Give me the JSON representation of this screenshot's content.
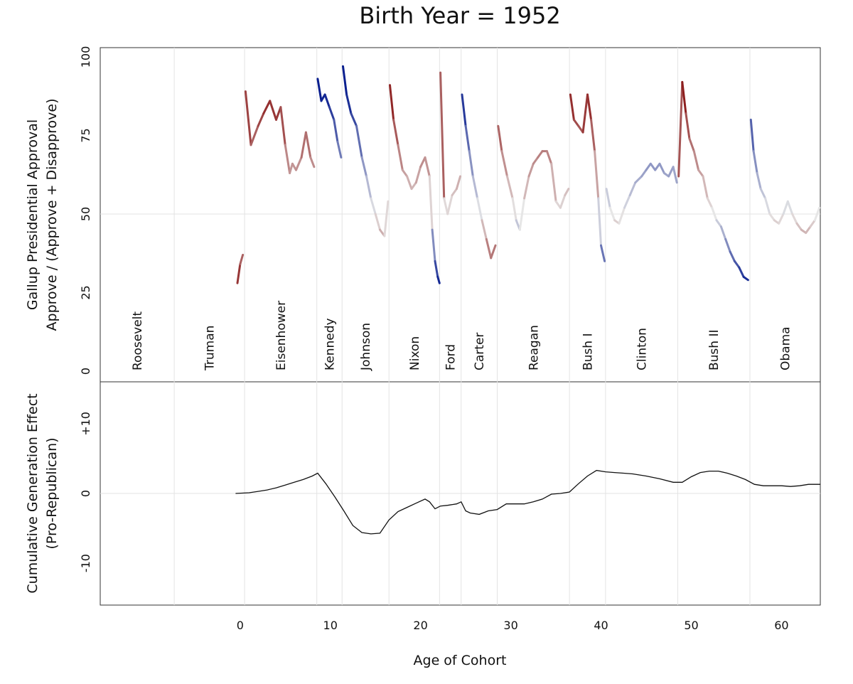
{
  "chart_data": [
    {
      "type": "line",
      "title": "Birth Year = 1952",
      "xlabel": "Age of Cohort",
      "ylabel_line1": "Gallup Presidential Approval",
      "ylabel_line2": "Approve / (Approve + Disapprove)",
      "xlim": [
        -15.5,
        64.3
      ],
      "ylim": [
        0,
        100
      ],
      "xticks": [
        0,
        10,
        20,
        30,
        40,
        50,
        60
      ],
      "yticks": [
        0,
        25,
        50,
        75,
        100
      ],
      "grid": true,
      "color_scale": {
        "republican": "#8b1a1a",
        "neutral": "#e6e6e6",
        "democrat": "#0a1f8f"
      },
      "presidents": [
        {
          "name": "Roosevelt",
          "start": -15.5,
          "end": -7.3,
          "party": "D"
        },
        {
          "name": "Truman",
          "start": -7.3,
          "end": 0.5,
          "party": "D"
        },
        {
          "name": "Eisenhower",
          "start": 0.5,
          "end": 8.5,
          "party": "R"
        },
        {
          "name": "Kennedy",
          "start": 8.5,
          "end": 11.3,
          "party": "D"
        },
        {
          "name": "Johnson",
          "start": 11.3,
          "end": 16.5,
          "party": "D"
        },
        {
          "name": "Nixon",
          "start": 16.5,
          "end": 22.1,
          "party": "R"
        },
        {
          "name": "Ford",
          "start": 22.1,
          "end": 24.5,
          "party": "R"
        },
        {
          "name": "Carter",
          "start": 24.5,
          "end": 28.5,
          "party": "D"
        },
        {
          "name": "Reagan",
          "start": 28.5,
          "end": 36.5,
          "party": "R"
        },
        {
          "name": "Bush I",
          "start": 36.5,
          "end": 40.5,
          "party": "R"
        },
        {
          "name": "Clinton",
          "start": 40.5,
          "end": 48.5,
          "party": "D"
        },
        {
          "name": "Bush II",
          "start": 48.5,
          "end": 56.5,
          "party": "R"
        },
        {
          "name": "Obama",
          "start": 56.5,
          "end": 64.3,
          "party": "D"
        }
      ],
      "series": [
        {
          "name": "Truman approval",
          "party": "D",
          "x": [
            -0.3,
            0.0,
            0.3
          ],
          "y": [
            28,
            34,
            37
          ]
        },
        {
          "name": "Eisenhower approval",
          "party": "R",
          "x": [
            0.6,
            1.2,
            2.0,
            2.6,
            3.3,
            4.0,
            4.5,
            5.0,
            5.5,
            5.8,
            6.2,
            6.8,
            7.3,
            7.8,
            8.2
          ],
          "y": [
            89,
            72,
            78,
            82,
            86,
            80,
            84,
            72,
            63,
            66,
            64,
            68,
            76,
            68,
            65
          ]
        },
        {
          "name": "Kennedy approval",
          "party": "D",
          "x": [
            8.6,
            9.0,
            9.4,
            9.9,
            10.4,
            10.8,
            11.2
          ],
          "y": [
            93,
            86,
            88,
            84,
            80,
            73,
            68
          ]
        },
        {
          "name": "Johnson approval",
          "party": "D",
          "x": [
            11.4,
            11.8,
            12.3,
            12.9,
            13.5,
            14.0,
            14.5,
            15.0,
            15.5,
            16.0,
            16.4
          ],
          "y": [
            97,
            88,
            82,
            78,
            68,
            62,
            55,
            50,
            45,
            43,
            54
          ]
        },
        {
          "name": "Nixon approval",
          "party": "R",
          "x": [
            16.6,
            17.0,
            17.5,
            18.0,
            18.5,
            19.0,
            19.5,
            20.0,
            20.5,
            21.0,
            21.3,
            21.6,
            21.9,
            22.1
          ],
          "y": [
            91,
            80,
            72,
            64,
            62,
            58,
            60,
            65,
            68,
            62,
            45,
            35,
            30,
            28
          ]
        },
        {
          "name": "Ford approval",
          "party": "R",
          "x": [
            22.2,
            22.6,
            23.0,
            23.5,
            24.0,
            24.4
          ],
          "y": [
            95,
            55,
            50,
            56,
            58,
            62
          ]
        },
        {
          "name": "Carter approval",
          "party": "D",
          "x": [
            24.6,
            25.0,
            25.4,
            25.8,
            26.3,
            26.8,
            27.3,
            27.8,
            28.3
          ],
          "y": [
            88,
            78,
            70,
            62,
            55,
            48,
            42,
            36,
            40
          ]
        },
        {
          "name": "Reagan approval",
          "party": "R",
          "x": [
            28.6,
            29.0,
            29.6,
            30.2,
            30.6,
            31.0,
            31.5,
            32.0,
            32.5,
            33.0,
            33.5,
            34.0,
            34.5,
            35.0,
            35.5,
            36.0,
            36.4
          ],
          "y": [
            78,
            70,
            62,
            55,
            48,
            45,
            55,
            62,
            66,
            68,
            70,
            70,
            66,
            54,
            52,
            56,
            58
          ]
        },
        {
          "name": "Bush I approval",
          "party": "R",
          "x": [
            36.6,
            37.0,
            37.5,
            38.0,
            38.5,
            38.9,
            39.3,
            39.7,
            40.0,
            40.4
          ],
          "y": [
            88,
            80,
            78,
            76,
            88,
            80,
            70,
            55,
            40,
            35
          ]
        },
        {
          "name": "Clinton approval",
          "party": "D",
          "x": [
            40.6,
            41.0,
            41.5,
            42.0,
            42.6,
            43.2,
            43.8,
            44.5,
            45.0,
            45.5,
            46.0,
            46.5,
            47.0,
            47.5,
            48.0,
            48.4
          ],
          "y": [
            58,
            52,
            48,
            47,
            52,
            56,
            60,
            62,
            64,
            66,
            64,
            66,
            63,
            62,
            65,
            60
          ]
        },
        {
          "name": "Bush II approval",
          "party": "R",
          "x": [
            48.6,
            49.0,
            49.4,
            49.8,
            50.3,
            50.8,
            51.3,
            51.8,
            52.3,
            52.8,
            53.3,
            53.8,
            54.3,
            54.8,
            55.3,
            55.8,
            56.3
          ],
          "y": [
            62,
            92,
            82,
            74,
            70,
            64,
            62,
            55,
            52,
            48,
            46,
            42,
            38,
            35,
            33,
            30,
            29
          ]
        },
        {
          "name": "Obama approval",
          "party": "D",
          "x": [
            56.6,
            56.9,
            57.3,
            57.7,
            58.2,
            58.7,
            59.2,
            59.7,
            60.2,
            60.7,
            61.2,
            61.7,
            62.2,
            62.7,
            63.2,
            63.7,
            64.2
          ],
          "y": [
            80,
            70,
            63,
            58,
            55,
            50,
            48,
            47,
            50,
            54,
            50,
            47,
            45,
            44,
            46,
            48,
            52
          ]
        }
      ]
    },
    {
      "type": "line",
      "xlabel": "Age of Cohort",
      "ylabel_line1": "Cumulative Generation Effect",
      "ylabel_line2": "(Pro-Republican)",
      "xlim": [
        -15.5,
        64.3
      ],
      "ylim": [
        -16,
        16
      ],
      "yticks": [
        -10,
        0,
        10
      ],
      "ytick_labels": [
        "-10",
        "0",
        "+10"
      ],
      "series": [
        {
          "name": "Cumulative generation effect",
          "x": [
            -0.5,
            1,
            2,
            3,
            4,
            5,
            6,
            7,
            8,
            8.6,
            9.5,
            10.5,
            11.5,
            12.5,
            13.5,
            14.5,
            15.5,
            16.5,
            17.5,
            18.5,
            19.5,
            20.5,
            21.0,
            21.6,
            22.2,
            23.0,
            24.0,
            24.5,
            25.0,
            25.5,
            26.5,
            27.5,
            28.5,
            29.5,
            30.5,
            31.5,
            32.5,
            33.5,
            34.5,
            35.5,
            36.5,
            37.5,
            38.5,
            39.5,
            40.5,
            41.5,
            42.5,
            43.5,
            45.0,
            46.5,
            48.0,
            49.0,
            50.0,
            51.0,
            52.0,
            53.0,
            54.0,
            55.0,
            56.0,
            57.0,
            58.0,
            59.0,
            60.0,
            61.0,
            62.0,
            63.0,
            64.3
          ],
          "y": [
            0.0,
            0.1,
            0.3,
            0.5,
            0.8,
            1.2,
            1.6,
            2.0,
            2.5,
            2.9,
            1.4,
            -0.5,
            -2.5,
            -4.6,
            -5.6,
            -5.8,
            -5.7,
            -3.8,
            -2.6,
            -2.0,
            -1.4,
            -0.8,
            -1.2,
            -2.2,
            -1.8,
            -1.7,
            -1.5,
            -1.2,
            -2.5,
            -2.8,
            -3.0,
            -2.5,
            -2.3,
            -1.5,
            -1.5,
            -1.5,
            -1.2,
            -0.8,
            -0.1,
            0.0,
            0.2,
            1.4,
            2.5,
            3.3,
            3.1,
            3.0,
            2.9,
            2.8,
            2.5,
            2.1,
            1.6,
            1.6,
            2.4,
            3.0,
            3.2,
            3.2,
            2.9,
            2.5,
            2.0,
            1.3,
            1.1,
            1.1,
            1.1,
            1.0,
            1.1,
            1.3,
            1.3
          ]
        }
      ]
    }
  ]
}
